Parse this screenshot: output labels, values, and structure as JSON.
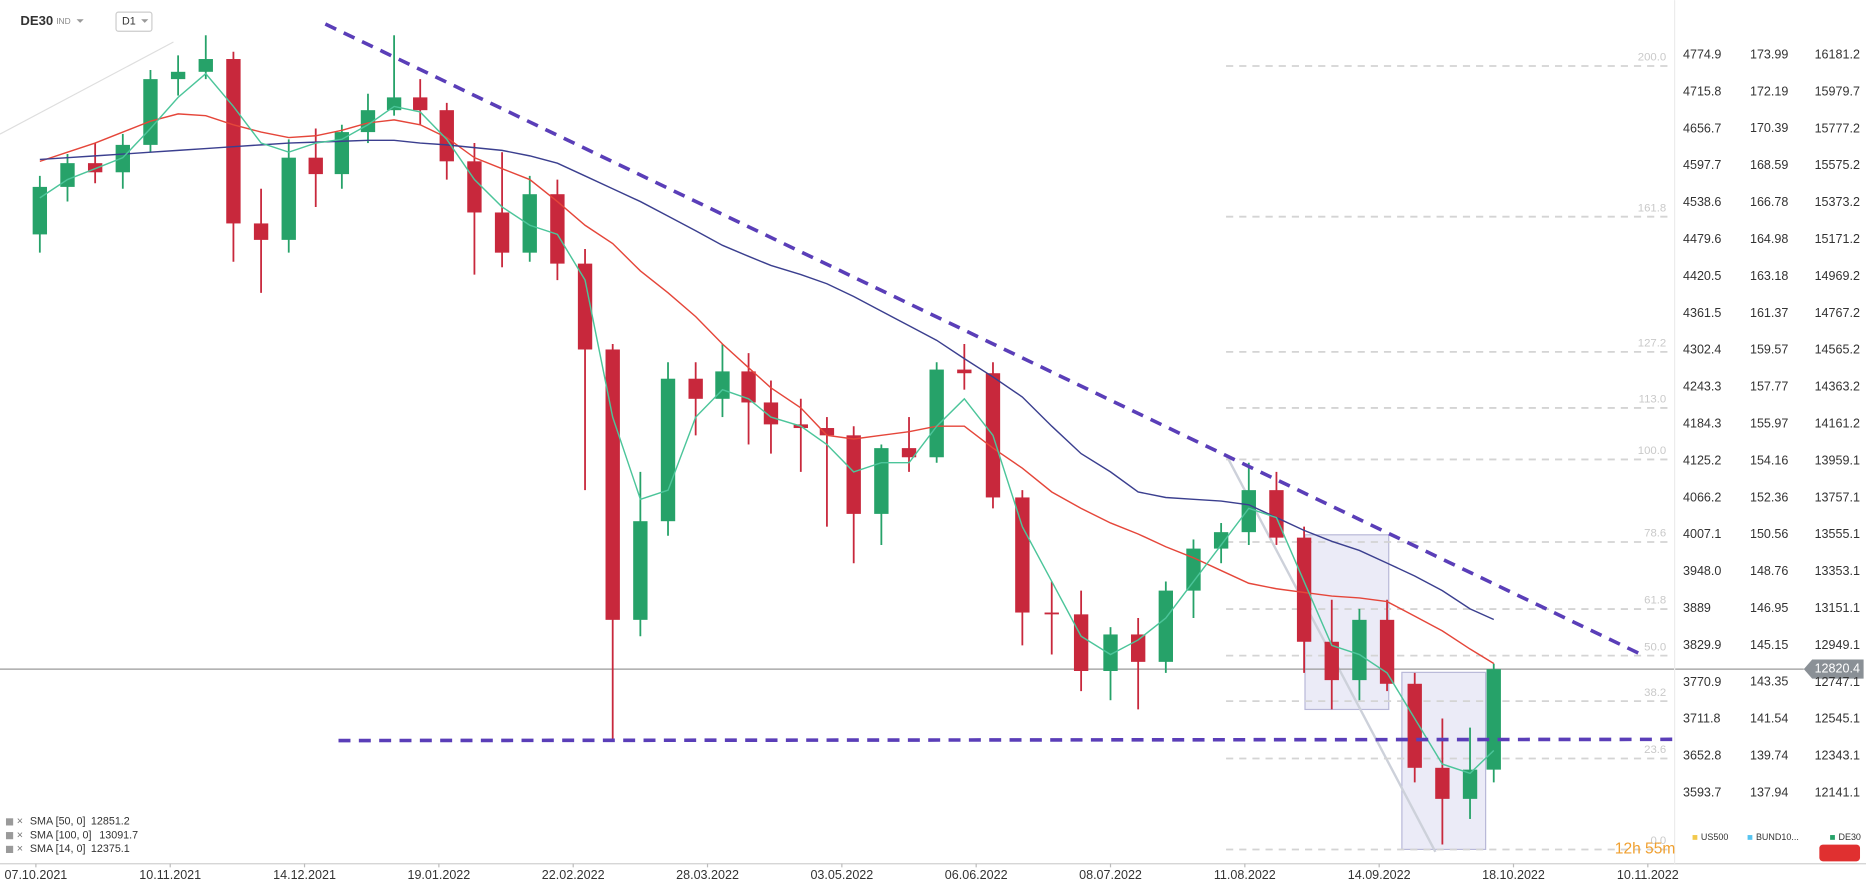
{
  "header": {
    "symbol": "DE30",
    "market": "IND",
    "timeframe": "D1"
  },
  "chart_data": {
    "type": "candlestick",
    "x": [
      "08.10.2021",
      "15.10.2021",
      "22.10.2021",
      "29.10.2021",
      "05.11.2021",
      "12.11.2021",
      "19.11.2021",
      "26.11.2021",
      "03.12.2021",
      "10.12.2021",
      "17.12.2021",
      "24.12.2021",
      "31.12.2021",
      "07.01.2022",
      "14.01.2022",
      "21.01.2022",
      "28.01.2022",
      "04.02.2022",
      "11.02.2022",
      "18.02.2022",
      "25.02.2022",
      "04.03.2022",
      "11.03.2022",
      "18.03.2022",
      "25.03.2022",
      "01.04.2022",
      "08.04.2022",
      "14.04.2022",
      "22.04.2022",
      "29.04.2022",
      "06.05.2022",
      "13.05.2022",
      "20.05.2022",
      "27.05.2022",
      "03.06.2022",
      "10.06.2022",
      "17.06.2022",
      "24.06.2022",
      "01.07.2022",
      "08.07.2022",
      "15.07.2022",
      "22.07.2022",
      "29.07.2022",
      "05.08.2022",
      "12.08.2022",
      "19.08.2022",
      "26.08.2022",
      "02.09.2022",
      "09.09.2022",
      "16.09.2022",
      "23.09.2022",
      "30.09.2022",
      "07.10.2022",
      "13.10.2022"
    ],
    "open": [
      15200,
      15460,
      15590,
      15540,
      15690,
      16050,
      16090,
      16160,
      15260,
      15170,
      15620,
      15530,
      15760,
      15880,
      15950,
      15880,
      15600,
      15320,
      15100,
      15420,
      15040,
      14570,
      13090,
      13630,
      14410,
      14300,
      14450,
      14280,
      14160,
      14140,
      14100,
      13670,
      14030,
      13980,
      14460,
      14440,
      13760,
      13130,
      13120,
      12810,
      13010,
      12860,
      13250,
      13480,
      13570,
      13800,
      13540,
      12970,
      12760,
      13090,
      12740,
      12280,
      12110,
      12270
    ],
    "high": [
      15520,
      15640,
      15700,
      15750,
      16100,
      16180,
      16290,
      16200,
      15450,
      15720,
      15780,
      15800,
      15970,
      16290,
      16050,
      15920,
      15700,
      15650,
      15520,
      15500,
      15120,
      14600,
      13900,
      14500,
      14500,
      14600,
      14550,
      14400,
      14300,
      14200,
      14150,
      14050,
      14200,
      14500,
      14600,
      14500,
      13800,
      13300,
      13250,
      13050,
      13100,
      13300,
      13530,
      13620,
      13950,
      13900,
      13600,
      13200,
      13150,
      13200,
      12800,
      12550,
      12500,
      12850
    ],
    "low": [
      15100,
      15380,
      15480,
      15450,
      15650,
      15960,
      16050,
      15050,
      14880,
      15100,
      15350,
      15450,
      15700,
      15850,
      15800,
      15500,
      14980,
      15020,
      15050,
      14950,
      13800,
      12440,
      13000,
      13550,
      14100,
      14200,
      14050,
      14000,
      13900,
      13600,
      13400,
      13500,
      13900,
      13950,
      14350,
      13700,
      12950,
      12900,
      12700,
      12650,
      12600,
      12800,
      13100,
      13400,
      13500,
      13500,
      12800,
      12600,
      12650,
      12700,
      12200,
      11860,
      12000,
      12200
    ],
    "close": [
      15460,
      15590,
      15540,
      15690,
      16050,
      16090,
      16160,
      15260,
      15170,
      15620,
      15530,
      15760,
      15880,
      15950,
      15880,
      15600,
      15320,
      15100,
      15420,
      15040,
      14570,
      13090,
      13630,
      14410,
      14300,
      14450,
      14280,
      14160,
      14140,
      14100,
      13670,
      14030,
      13980,
      14460,
      14440,
      13760,
      13130,
      13120,
      12810,
      13010,
      12860,
      13250,
      13480,
      13570,
      13800,
      13540,
      12970,
      12760,
      13090,
      12740,
      12280,
      12110,
      12270,
      12820
    ],
    "up_color": "#26a269",
    "down_color": "#c8283c",
    "series": [
      {
        "name": "SMA [50, 0]",
        "color": "#e5463a",
        "values": [
          15600,
          15650,
          15700,
          15760,
          15820,
          15860,
          15850,
          15800,
          15760,
          15730,
          15740,
          15770,
          15810,
          15827,
          15800,
          15730,
          15620,
          15560,
          15500,
          15380,
          15250,
          15150,
          15000,
          14880,
          14750,
          14600,
          14470,
          14360,
          14250,
          14100,
          14080,
          14100,
          14120,
          14150,
          14150,
          14030,
          13920,
          13790,
          13700,
          13620,
          13560,
          13490,
          13430,
          13360,
          13290,
          13260,
          13240,
          13220,
          13210,
          13190,
          13110,
          13030,
          12930,
          12851.2
        ]
      },
      {
        "name": "SMA [100, 0]",
        "color": "#3b3f8f",
        "values": [
          15610,
          15620,
          15630,
          15640,
          15650,
          15660,
          15670,
          15680,
          15690,
          15700,
          15705,
          15710,
          15715,
          15715,
          15700,
          15690,
          15675,
          15660,
          15630,
          15590,
          15520,
          15450,
          15380,
          15300,
          15220,
          15140,
          15080,
          15030,
          14980,
          14930,
          14860,
          14780,
          14700,
          14620,
          14520,
          14420,
          14310,
          14150,
          14000,
          13900,
          13790,
          13760,
          13750,
          13740,
          13720,
          13650,
          13580,
          13520,
          13470,
          13400,
          13330,
          13250,
          13150,
          13091.7
        ]
      },
      {
        "name": "SMA [14, 0]",
        "color": "#4cc59a",
        "values": [
          15400,
          15500,
          15560,
          15620,
          15780,
          15950,
          16080,
          15900,
          15700,
          15650,
          15700,
          15720,
          15800,
          15900,
          15870,
          15720,
          15500,
          15350,
          15250,
          15200,
          14950,
          14200,
          13750,
          13800,
          14200,
          14350,
          14300,
          14200,
          14150,
          14050,
          13900,
          13950,
          13950,
          14150,
          14300,
          14100,
          13600,
          13300,
          13000,
          12900,
          12980,
          13100,
          13300,
          13500,
          13700,
          13650,
          13300,
          12950,
          12900,
          12800,
          12550,
          12300,
          12250,
          12375.1
        ]
      }
    ],
    "xlim": [
      "28.09.2021",
      "16.11.2022"
    ],
    "xticks": [
      "07.10.2021",
      "10.11.2021",
      "14.12.2021",
      "19.01.2022",
      "22.02.2022",
      "28.03.2022",
      "03.05.2022",
      "06.06.2022",
      "08.07.2022",
      "11.08.2022",
      "14.09.2022",
      "18.10.2022",
      "10.11.2022"
    ],
    "ylim": [
      11754.8,
      16482.4
    ],
    "yticks": [
      16181.2,
      15979.7,
      15777.2,
      15575.2,
      15373.2,
      15171.2,
      14969.2,
      14767.2,
      14565.2,
      14363.2,
      14161.2,
      13959.1,
      13757.1,
      13555.1,
      13353.1,
      13151.1,
      12949.1,
      12747.1,
      12545.1,
      12343.1,
      12141.1
    ],
    "y2lim": [
      3480.8,
      4863.0
    ],
    "y2ticks": [
      4774.9,
      4715.8,
      4656.7,
      4597.7,
      4538.6,
      4479.6,
      4420.5,
      4361.5,
      4302.4,
      4243.3,
      4184.3,
      4125.2,
      4066.2,
      4007.1,
      {
        "value": 3948,
        "label": "3948.0"
      },
      3889.0,
      3829.9,
      3770.9,
      3711.8,
      3652.8,
      3593.7
    ],
    "y3lim": [
      134.49,
      176.68
    ],
    "y3ticks": [
      173.99,
      172.19,
      170.39,
      168.59,
      166.78,
      164.98,
      163.18,
      161.37,
      159.57,
      157.77,
      155.97,
      154.16,
      152.36,
      150.56,
      148.76,
      146.95,
      145.15,
      143.35,
      141.54,
      139.74,
      137.94
    ],
    "last_price": 12820.4,
    "fib_levels": [
      {
        "label": "200.0",
        "price": 16122
      },
      {
        "label": "161.8",
        "price": 15297
      },
      {
        "label": "127.2",
        "price": 14557
      },
      {
        "label": "113.0",
        "price": 14250
      },
      {
        "label": "100.0",
        "price": 13968
      },
      {
        "label": "78.6",
        "price": 13516
      },
      {
        "label": "61.8",
        "price": 13149
      },
      {
        "label": "50.0",
        "price": 12894
      },
      {
        "label": "38.2",
        "price": 12645
      },
      {
        "label": "23.6",
        "price": 12331
      },
      {
        "label": "0.0",
        "price": 11833
      }
    ],
    "instruments": [
      {
        "name": "US500",
        "color": "#f2c94c"
      },
      {
        "name": "BUND10...",
        "color": "#56c4f0"
      },
      {
        "name": "DE30",
        "color": "#26a269"
      }
    ],
    "timer": "12h 55m"
  }
}
